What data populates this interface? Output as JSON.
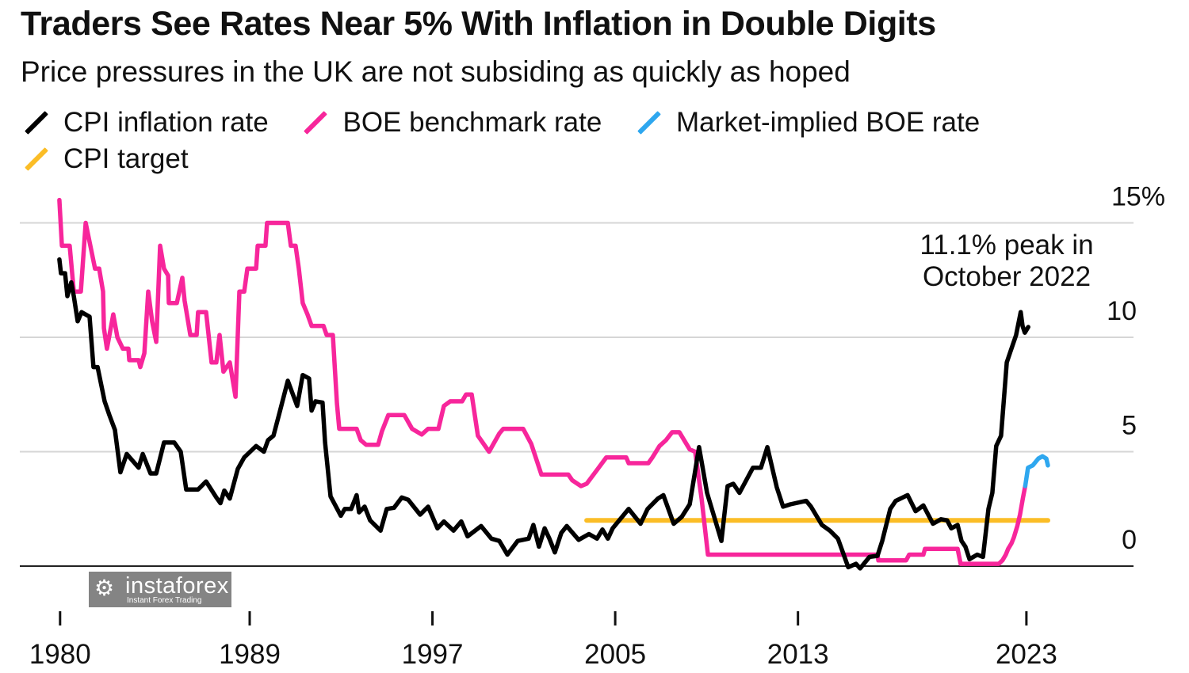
{
  "header": {
    "title": "Traders See Rates Near 5% With Inflation in Double Digits",
    "subtitle": "Price pressures in the UK are not subsiding as quickly as hoped"
  },
  "legend": [
    {
      "label": "CPI inflation rate",
      "color": "#000000",
      "icon": "slash-line-icon"
    },
    {
      "label": "BOE benchmark rate",
      "color": "#f7269b",
      "icon": "slash-line-icon"
    },
    {
      "label": "Market-implied BOE rate",
      "color": "#2ea7ef",
      "icon": "slash-line-icon"
    },
    {
      "label": "CPI target",
      "color": "#fbbd26",
      "icon": "slash-line-icon"
    }
  ],
  "watermark": {
    "brand": "instaforex",
    "tagline": "Instant Forex Trading"
  },
  "chart_data": {
    "type": "line",
    "title": "Traders See Rates Near 5% With Inflation in Double Digits",
    "subtitle": "Price pressures in the UK are not subsiding as quickly as hoped",
    "xlim": [
      1980.7,
      2024.5
    ],
    "ylim": [
      0,
      15
    ],
    "grid": true,
    "legend_position": "top-left",
    "y_axis_position": "right",
    "x_ticks": [
      {
        "value": 1980.7,
        "label": "1980"
      },
      {
        "value": 1989,
        "label": "1989"
      },
      {
        "value": 1997,
        "label": "1997"
      },
      {
        "value": 2005,
        "label": "2005"
      },
      {
        "value": 2013,
        "label": "2013"
      },
      {
        "value": 2023,
        "label": "2023"
      }
    ],
    "y_ticks": [
      {
        "value": 0,
        "label": "0"
      },
      {
        "value": 5,
        "label": "5"
      },
      {
        "value": 10,
        "label": "10"
      },
      {
        "value": 15,
        "label": "15%"
      }
    ],
    "annotation": {
      "lines": [
        "11.1% peak in",
        "October 2022"
      ],
      "x": 2022.75,
      "y": 11.1
    },
    "series": [
      {
        "name": "CPI target",
        "color": "#fbbd26",
        "points": [
          [
            2003.75,
            2.0
          ],
          [
            2023.94,
            2.0
          ]
        ]
      },
      {
        "name": "BOE benchmark rate",
        "color": "#f7269b",
        "points": [
          [
            1980.67,
            16.0
          ],
          [
            1980.78,
            14.0
          ],
          [
            1981.12,
            14.0
          ],
          [
            1981.3,
            12.0
          ],
          [
            1981.61,
            12.0
          ],
          [
            1981.82,
            15.0
          ],
          [
            1982.23,
            13.0
          ],
          [
            1982.41,
            13.0
          ],
          [
            1982.58,
            12.0
          ],
          [
            1982.62,
            10.4
          ],
          [
            1982.75,
            9.5
          ],
          [
            1983.03,
            11.0
          ],
          [
            1983.21,
            10.0
          ],
          [
            1983.45,
            9.5
          ],
          [
            1983.69,
            9.5
          ],
          [
            1983.73,
            9.0
          ],
          [
            1984.14,
            9.0
          ],
          [
            1984.21,
            8.7
          ],
          [
            1984.39,
            9.3
          ],
          [
            1984.56,
            12.0
          ],
          [
            1984.73,
            10.7
          ],
          [
            1984.91,
            9.8
          ],
          [
            1985.08,
            14.0
          ],
          [
            1985.25,
            13.0
          ],
          [
            1985.43,
            12.7
          ],
          [
            1985.46,
            11.5
          ],
          [
            1985.81,
            11.5
          ],
          [
            1986.05,
            12.6
          ],
          [
            1986.15,
            11.6
          ],
          [
            1986.4,
            10.1
          ],
          [
            1986.68,
            10.1
          ],
          [
            1986.74,
            11.1
          ],
          [
            1987.09,
            11.1
          ],
          [
            1987.33,
            8.9
          ],
          [
            1987.54,
            8.9
          ],
          [
            1987.68,
            10.1
          ],
          [
            1987.85,
            8.5
          ],
          [
            1988.13,
            8.9
          ],
          [
            1988.38,
            7.4
          ],
          [
            1988.55,
            12.0
          ],
          [
            1988.76,
            12.0
          ],
          [
            1988.9,
            13.0
          ],
          [
            1989.28,
            13.0
          ],
          [
            1989.35,
            14.0
          ],
          [
            1989.69,
            14.0
          ],
          [
            1989.76,
            15.0
          ],
          [
            1990.67,
            15.0
          ],
          [
            1990.8,
            14.0
          ],
          [
            1991.01,
            14.0
          ],
          [
            1991.15,
            13.0
          ],
          [
            1991.32,
            11.5
          ],
          [
            1991.53,
            11.0
          ],
          [
            1991.71,
            10.5
          ],
          [
            1992.23,
            10.5
          ],
          [
            1992.37,
            10.1
          ],
          [
            1992.64,
            10.1
          ],
          [
            1992.82,
            7.1
          ],
          [
            1992.92,
            6.0
          ],
          [
            1993.68,
            6.0
          ],
          [
            1993.86,
            5.5
          ],
          [
            1994.1,
            5.3
          ],
          [
            1994.62,
            5.3
          ],
          [
            1994.79,
            5.9
          ],
          [
            1995.07,
            6.6
          ],
          [
            1995.77,
            6.6
          ],
          [
            1996.11,
            6.0
          ],
          [
            1996.53,
            5.75
          ],
          [
            1996.81,
            6.0
          ],
          [
            1997.26,
            6.0
          ],
          [
            1997.5,
            7.0
          ],
          [
            1997.78,
            7.2
          ],
          [
            1998.3,
            7.2
          ],
          [
            1998.47,
            7.5
          ],
          [
            1998.72,
            7.5
          ],
          [
            1998.99,
            5.7
          ],
          [
            1999.48,
            5.0
          ],
          [
            1999.93,
            5.8
          ],
          [
            2000.1,
            6.0
          ],
          [
            2000.97,
            6.0
          ],
          [
            2001.32,
            5.35
          ],
          [
            2001.77,
            4.0
          ],
          [
            2002.95,
            4.0
          ],
          [
            2003.12,
            3.75
          ],
          [
            2003.5,
            3.5
          ],
          [
            2003.75,
            3.6
          ],
          [
            2004.2,
            4.2
          ],
          [
            2004.61,
            4.75
          ],
          [
            2005.48,
            4.75
          ],
          [
            2005.59,
            4.5
          ],
          [
            2006.45,
            4.5
          ],
          [
            2006.63,
            4.75
          ],
          [
            2006.94,
            5.25
          ],
          [
            2007.22,
            5.5
          ],
          [
            2007.49,
            5.85
          ],
          [
            2007.81,
            5.85
          ],
          [
            2008.26,
            5.1
          ],
          [
            2008.5,
            5.0
          ],
          [
            2008.78,
            2.95
          ],
          [
            2009.06,
            0.5
          ],
          [
            2016.48,
            0.5
          ],
          [
            2016.52,
            0.25
          ],
          [
            2017.73,
            0.25
          ],
          [
            2017.87,
            0.5
          ],
          [
            2018.49,
            0.5
          ],
          [
            2018.56,
            0.75
          ],
          [
            2019.99,
            0.75
          ],
          [
            2020.12,
            0.1
          ],
          [
            2021.79,
            0.1
          ],
          [
            2021.95,
            0.25
          ],
          [
            2022.1,
            0.5
          ],
          [
            2022.2,
            0.75
          ],
          [
            2022.35,
            1.0
          ],
          [
            2022.45,
            1.25
          ],
          [
            2022.6,
            1.75
          ],
          [
            2022.72,
            2.25
          ],
          [
            2022.85,
            3.0
          ],
          [
            2022.95,
            3.5
          ]
        ]
      },
      {
        "name": "Market-implied BOE rate",
        "color": "#2ea7ef",
        "points": [
          [
            2022.95,
            3.5
          ],
          [
            2023.07,
            4.3
          ],
          [
            2023.28,
            4.4
          ],
          [
            2023.52,
            4.7
          ],
          [
            2023.7,
            4.8
          ],
          [
            2023.87,
            4.7
          ],
          [
            2023.94,
            4.4
          ]
        ]
      },
      {
        "name": "CPI inflation rate",
        "color": "#000000",
        "points": [
          [
            1980.67,
            13.4
          ],
          [
            1980.74,
            12.8
          ],
          [
            1980.92,
            12.8
          ],
          [
            1981.02,
            11.8
          ],
          [
            1981.19,
            12.4
          ],
          [
            1981.3,
            11.8
          ],
          [
            1981.47,
            10.7
          ],
          [
            1981.64,
            11.1
          ],
          [
            1981.99,
            10.9
          ],
          [
            1982.16,
            8.7
          ],
          [
            1982.34,
            8.7
          ],
          [
            1982.65,
            7.2
          ],
          [
            1982.86,
            6.6
          ],
          [
            1983.1,
            5.95
          ],
          [
            1983.34,
            4.1
          ],
          [
            1983.62,
            4.9
          ],
          [
            1984.14,
            4.3
          ],
          [
            1984.32,
            4.9
          ],
          [
            1984.66,
            4.05
          ],
          [
            1984.91,
            4.05
          ],
          [
            1985.25,
            5.4
          ],
          [
            1985.7,
            5.4
          ],
          [
            1985.98,
            5.0
          ],
          [
            1986.22,
            3.35
          ],
          [
            1986.74,
            3.35
          ],
          [
            1987.09,
            3.7
          ],
          [
            1987.54,
            3.0
          ],
          [
            1987.72,
            2.75
          ],
          [
            1987.89,
            3.3
          ],
          [
            1988.13,
            2.95
          ],
          [
            1988.48,
            4.25
          ],
          [
            1988.76,
            4.75
          ],
          [
            1989.28,
            5.25
          ],
          [
            1989.62,
            5.0
          ],
          [
            1989.8,
            5.5
          ],
          [
            1990.04,
            5.7
          ],
          [
            1990.32,
            6.75
          ],
          [
            1990.67,
            8.1
          ],
          [
            1991.08,
            7.0
          ],
          [
            1991.32,
            8.35
          ],
          [
            1991.6,
            8.2
          ],
          [
            1991.71,
            6.8
          ],
          [
            1991.88,
            7.2
          ],
          [
            1992.19,
            7.15
          ],
          [
            1992.3,
            5.4
          ],
          [
            1992.54,
            3.05
          ],
          [
            1992.99,
            2.2
          ],
          [
            1993.16,
            2.5
          ],
          [
            1993.44,
            2.5
          ],
          [
            1993.68,
            3.1
          ],
          [
            1993.79,
            2.35
          ],
          [
            1994.03,
            2.6
          ],
          [
            1994.27,
            2.0
          ],
          [
            1994.73,
            1.55
          ],
          [
            1995.0,
            2.5
          ],
          [
            1995.32,
            2.55
          ],
          [
            1995.66,
            3.0
          ],
          [
            1995.94,
            2.9
          ],
          [
            1996.46,
            2.25
          ],
          [
            1996.81,
            2.6
          ],
          [
            1997.22,
            1.65
          ],
          [
            1997.5,
            1.95
          ],
          [
            1997.92,
            1.55
          ],
          [
            1998.26,
            1.95
          ],
          [
            1998.54,
            1.3
          ],
          [
            1999.13,
            1.75
          ],
          [
            1999.58,
            1.2
          ],
          [
            1999.93,
            1.1
          ],
          [
            2000.28,
            0.5
          ],
          [
            2000.73,
            1.1
          ],
          [
            2001.21,
            1.2
          ],
          [
            2001.42,
            1.8
          ],
          [
            2001.66,
            0.85
          ],
          [
            2001.91,
            1.65
          ],
          [
            2002.12,
            1.2
          ],
          [
            2002.36,
            0.6
          ],
          [
            2002.64,
            1.45
          ],
          [
            2002.88,
            1.75
          ],
          [
            2003.4,
            1.15
          ],
          [
            2003.85,
            1.4
          ],
          [
            2004.2,
            1.2
          ],
          [
            2004.44,
            1.6
          ],
          [
            2004.68,
            1.2
          ],
          [
            2004.89,
            1.65
          ],
          [
            2005.59,
            2.5
          ],
          [
            2006.11,
            1.85
          ],
          [
            2006.42,
            2.5
          ],
          [
            2006.87,
            2.95
          ],
          [
            2007.11,
            3.1
          ],
          [
            2007.56,
            1.85
          ],
          [
            2007.91,
            2.15
          ],
          [
            2008.26,
            2.7
          ],
          [
            2008.67,
            5.2
          ],
          [
            2009.02,
            3.2
          ],
          [
            2009.65,
            1.1
          ],
          [
            2009.92,
            3.5
          ],
          [
            2010.17,
            3.6
          ],
          [
            2010.44,
            3.2
          ],
          [
            2011.03,
            4.3
          ],
          [
            2011.38,
            4.3
          ],
          [
            2011.66,
            5.2
          ],
          [
            2012.07,
            3.45
          ],
          [
            2012.35,
            2.6
          ],
          [
            2012.66,
            2.7
          ],
          [
            2013.36,
            2.85
          ],
          [
            2013.57,
            2.6
          ],
          [
            2014.05,
            1.8
          ],
          [
            2014.4,
            1.55
          ],
          [
            2014.75,
            1.2
          ],
          [
            2015.2,
            -0.05
          ],
          [
            2015.54,
            0.1
          ],
          [
            2015.72,
            -0.1
          ],
          [
            2016.13,
            0.4
          ],
          [
            2016.48,
            0.45
          ],
          [
            2016.69,
            1.1
          ],
          [
            2017.04,
            2.5
          ],
          [
            2017.28,
            2.85
          ],
          [
            2017.8,
            3.1
          ],
          [
            2018.15,
            2.4
          ],
          [
            2018.49,
            2.65
          ],
          [
            2018.91,
            1.85
          ],
          [
            2019.26,
            2.05
          ],
          [
            2019.53,
            2.0
          ],
          [
            2019.71,
            1.65
          ],
          [
            2019.99,
            1.8
          ],
          [
            2020.16,
            1.1
          ],
          [
            2020.33,
            0.85
          ],
          [
            2020.51,
            0.3
          ],
          [
            2020.85,
            0.5
          ],
          [
            2021.1,
            0.4
          ],
          [
            2021.34,
            2.5
          ],
          [
            2021.51,
            3.2
          ],
          [
            2021.68,
            5.25
          ],
          [
            2021.89,
            5.7
          ],
          [
            2022.14,
            8.9
          ],
          [
            2022.31,
            9.4
          ],
          [
            2022.55,
            10.1
          ],
          [
            2022.75,
            11.1
          ],
          [
            2022.83,
            10.5
          ],
          [
            2022.93,
            10.2
          ],
          [
            2023.08,
            10.45
          ]
        ]
      }
    ]
  }
}
